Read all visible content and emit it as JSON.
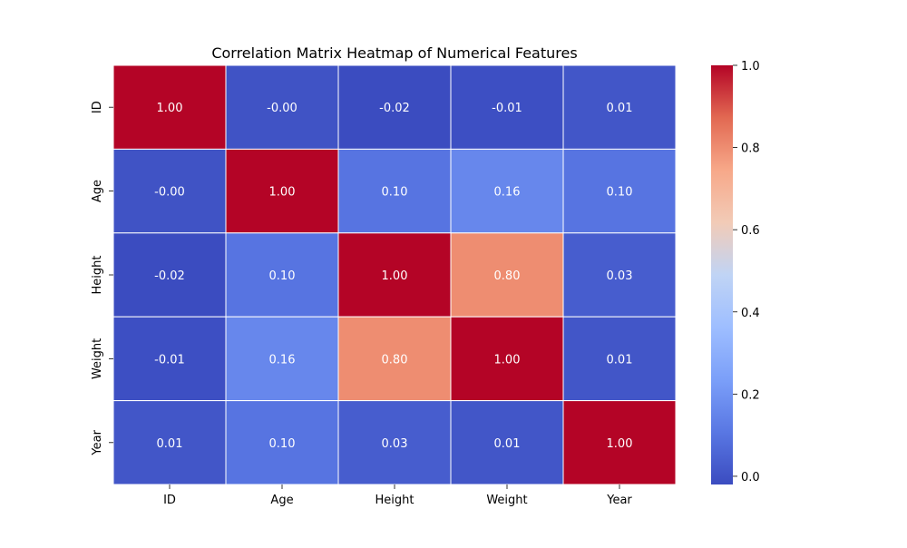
{
  "chart_data": {
    "type": "heatmap",
    "title": "Correlation Matrix Heatmap of Numerical Features",
    "x_labels": [
      "ID",
      "Age",
      "Height",
      "Weight",
      "Year"
    ],
    "y_labels": [
      "ID",
      "Age",
      "Height",
      "Weight",
      "Year"
    ],
    "values": [
      [
        1.0,
        -0.0,
        -0.02,
        -0.01,
        0.01
      ],
      [
        -0.0,
        1.0,
        0.1,
        0.16,
        0.1
      ],
      [
        -0.02,
        0.1,
        1.0,
        0.8,
        0.03
      ],
      [
        -0.01,
        0.16,
        0.8,
        1.0,
        0.01
      ],
      [
        0.01,
        0.1,
        0.03,
        0.01,
        1.0
      ]
    ],
    "cell_labels": [
      [
        "1.00",
        "-0.00",
        "-0.02",
        "-0.01",
        "0.01"
      ],
      [
        "-0.00",
        "1.00",
        "0.10",
        "0.16",
        "0.10"
      ],
      [
        "-0.02",
        "0.10",
        "1.00",
        "0.80",
        "0.03"
      ],
      [
        "-0.01",
        "0.16",
        "0.80",
        "1.00",
        "0.01"
      ],
      [
        "0.01",
        "0.10",
        "0.03",
        "0.01",
        "1.00"
      ]
    ],
    "colormap": "coolwarm",
    "value_range": [
      -0.02,
      1.0
    ],
    "colorbar": {
      "ticks": [
        0.0,
        0.2,
        0.4,
        0.6,
        0.8,
        1.0
      ],
      "tick_labels": [
        "0.0",
        "0.2",
        "0.4",
        "0.6",
        "0.8",
        "1.0"
      ]
    },
    "grid_line_color": "#ffffff",
    "annotation_color": "#ffffff"
  }
}
